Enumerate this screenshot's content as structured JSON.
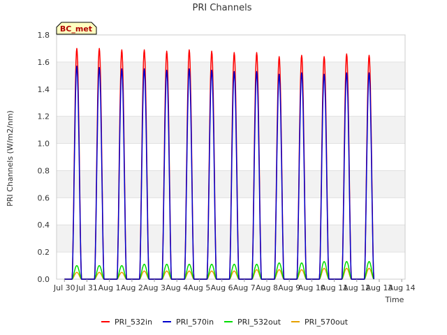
{
  "chart_data": {
    "type": "line",
    "title": "PRI Channels",
    "xlabel": "Time",
    "ylabel": "PRI Channels (W/m2/nm)",
    "ylim": [
      0,
      1.8
    ],
    "yticks": [
      "0.0",
      "0.2",
      "0.4",
      "0.6",
      "0.8",
      "1.0",
      "1.2",
      "1.4",
      "1.6",
      "1.8"
    ],
    "xlim_days": [
      0,
      15
    ],
    "xticks": [
      "Jul 30",
      "Jul 31",
      "Aug 1",
      "Aug 2",
      "Aug 3",
      "Aug 4",
      "Aug 5",
      "Aug 6",
      "Aug 7",
      "Aug 8",
      "Aug 9",
      "Aug 10",
      "Aug 11",
      "Aug 12",
      "Aug 13",
      "Aug 14"
    ],
    "x_start_label": "Jul 30",
    "badge": "BC_met",
    "grid": "horizontal bands",
    "legend_position": "bottom",
    "series": [
      {
        "name": "PRI_532in",
        "color": "#ff0000",
        "peaks": [
          1.7,
          1.7,
          1.69,
          1.69,
          1.68,
          1.69,
          1.68,
          1.67,
          1.67,
          1.64,
          1.65,
          1.64,
          1.66,
          1.65
        ]
      },
      {
        "name": "PRI_570in",
        "color": "#0000cc",
        "peaks": [
          1.57,
          1.56,
          1.55,
          1.55,
          1.54,
          1.55,
          1.54,
          1.53,
          1.53,
          1.51,
          1.52,
          1.51,
          1.52,
          1.52
        ]
      },
      {
        "name": "PRI_532out",
        "color": "#00dd00",
        "peaks": [
          0.1,
          0.1,
          0.1,
          0.11,
          0.11,
          0.11,
          0.11,
          0.11,
          0.11,
          0.12,
          0.12,
          0.13,
          0.13,
          0.13
        ]
      },
      {
        "name": "PRI_570out",
        "color": "#e6a000",
        "peaks": [
          0.05,
          0.05,
          0.05,
          0.06,
          0.06,
          0.06,
          0.06,
          0.06,
          0.07,
          0.07,
          0.07,
          0.08,
          0.08,
          0.08
        ]
      }
    ],
    "peak_day_offset": 0.55,
    "day_width": 0.42
  }
}
